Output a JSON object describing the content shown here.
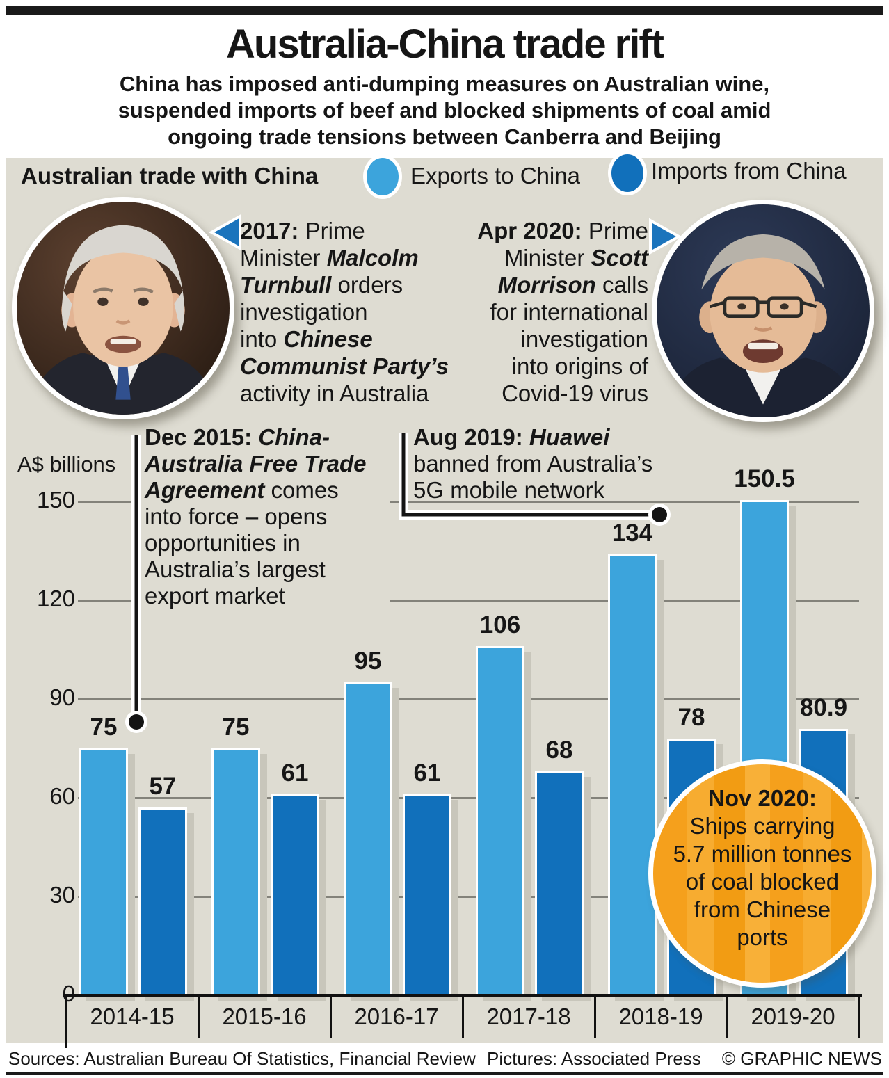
{
  "header": {
    "title": "Australia-China trade rift",
    "subtitle_lines": [
      "China has imposed anti-dumping measures on Australian wine,",
      "suspended imports of beef and blocked shipments of coal amid",
      "ongoing trade tensions between Canberra and Beijing"
    ]
  },
  "chart_data": {
    "type": "bar",
    "title": "Australian trade with China",
    "unit_label": "A$ billions",
    "categories": [
      "2014-15",
      "2015-16",
      "2016-17",
      "2017-18",
      "2018-19",
      "2019-20"
    ],
    "series": [
      {
        "name": "Exports to China",
        "color": "#3ca4dc",
        "values": [
          75,
          75,
          95,
          106,
          134,
          150.5
        ]
      },
      {
        "name": "Imports from China",
        "color": "#1170bb",
        "values": [
          57,
          61,
          61,
          68,
          78,
          80.9
        ]
      }
    ],
    "ylim": [
      0,
      150
    ],
    "yticks": [
      0,
      30,
      60,
      90,
      120,
      150
    ],
    "grid": true,
    "legend_position": "top",
    "gridline_color": "#83827a",
    "background_color": "#dedcd2"
  },
  "annotations": {
    "turnbull_2017": {
      "lines": [
        [
          {
            "t": "2017:",
            "s": "b"
          },
          {
            "t": " Prime",
            "s": ""
          }
        ],
        [
          {
            "t": "Minister ",
            "s": ""
          },
          {
            "t": "Malcolm",
            "s": "bi"
          }
        ],
        [
          {
            "t": "Turnbull",
            "s": "bi"
          },
          {
            "t": " orders",
            "s": ""
          }
        ],
        "investigation",
        [
          {
            "t": "into ",
            "s": ""
          },
          {
            "t": "Chinese",
            "s": "bi"
          }
        ],
        [
          {
            "t": "Communist Party’s",
            "s": "bi"
          }
        ],
        "activity in Australia"
      ]
    },
    "morrison_2020": {
      "lines": [
        [
          {
            "t": "Apr 2020:",
            "s": "b"
          },
          {
            "t": " Prime",
            "s": ""
          }
        ],
        [
          {
            "t": "Minister ",
            "s": ""
          },
          {
            "t": "Scott",
            "s": "bi"
          }
        ],
        [
          {
            "t": "Morrison",
            "s": "bi"
          },
          {
            "t": " calls",
            "s": ""
          }
        ],
        "for international",
        "investigation",
        "into origins of",
        "Covid-19 virus"
      ]
    },
    "fta_2015": {
      "lines": [
        [
          {
            "t": "Dec 2015: ",
            "s": "b"
          },
          {
            "t": "China-",
            "s": "bi"
          }
        ],
        [
          {
            "t": "Australia Free Trade",
            "s": "bi"
          }
        ],
        [
          {
            "t": "Agreement",
            "s": "bi"
          },
          {
            "t": " comes",
            "s": ""
          }
        ],
        "into force – opens",
        "opportunities in",
        "Australia’s largest",
        "export market"
      ]
    },
    "huawei_2019": {
      "lines": [
        [
          {
            "t": "Aug 2019: ",
            "s": "b"
          },
          {
            "t": "Huawei",
            "s": "bi"
          }
        ],
        "banned from Australia’s",
        "5G mobile network"
      ]
    },
    "coal_2020": {
      "accent_color": "#f6a41f",
      "lines": [
        [
          {
            "t": "Nov 2020:",
            "s": "b"
          }
        ],
        "Ships carrying",
        "5.7 million tonnes",
        "of coal blocked",
        "from Chinese",
        "ports"
      ]
    }
  },
  "footer": {
    "sources": "Sources: Australian Bureau Of Statistics, Financial Review",
    "pictures": "Pictures: Associated Press",
    "copyright": "© GRAPHIC NEWS"
  }
}
